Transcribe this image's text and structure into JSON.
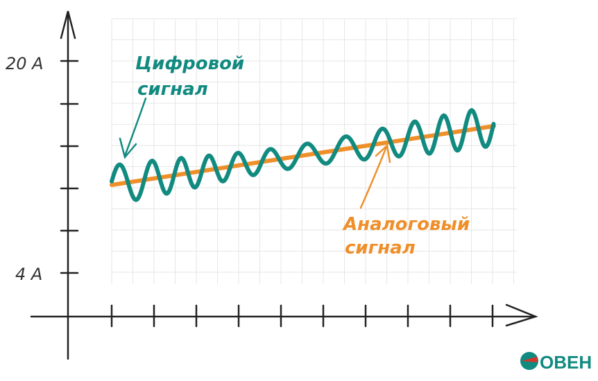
{
  "axis_labels": {
    "top": "20 А",
    "bottom": "4 А"
  },
  "digital_signal": [
    "Цифровой",
    "сигнал"
  ],
  "analog_signal": [
    "Аналоговый",
    "сигнал"
  ],
  "logo": "ОВЕН"
}
